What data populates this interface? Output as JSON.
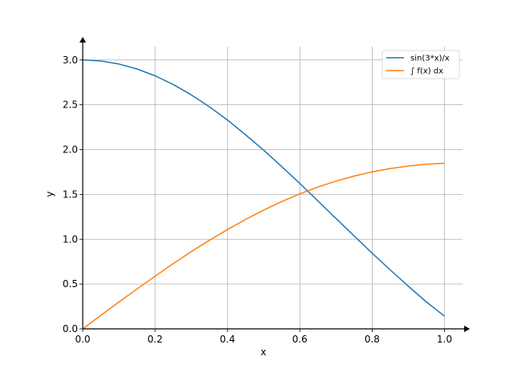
{
  "chart_data": {
    "type": "line",
    "title": "",
    "xlabel": "x",
    "ylabel": "y",
    "xlim": [
      0,
      1.05
    ],
    "ylim": [
      0,
      3.15
    ],
    "xticks": [
      0.0,
      0.2,
      0.4,
      0.6,
      0.8,
      1.0
    ],
    "xtick_labels": [
      "0.0",
      "0.2",
      "0.4",
      "0.6",
      "0.8",
      "1.0"
    ],
    "yticks": [
      0.0,
      0.5,
      1.0,
      1.5,
      2.0,
      2.5,
      3.0
    ],
    "ytick_labels": [
      "0.0",
      "0.5",
      "1.0",
      "1.5",
      "2.0",
      "2.5",
      "3.0"
    ],
    "grid": true,
    "legend_position": "top-right",
    "series": [
      {
        "name": "sin(3*x)/x",
        "color": "#1f77b4",
        "x": [
          0.0,
          0.05,
          0.1,
          0.15,
          0.2,
          0.25,
          0.3,
          0.35,
          0.4,
          0.45,
          0.5,
          0.55,
          0.6,
          0.65,
          0.7,
          0.75,
          0.8,
          0.85,
          0.9,
          0.95,
          1.0
        ],
        "y": [
          3.0,
          2.989,
          2.955,
          2.899,
          2.823,
          2.727,
          2.611,
          2.478,
          2.33,
          2.166,
          1.995,
          1.81,
          1.622,
          1.427,
          1.232,
          1.037,
          0.844,
          0.658,
          0.476,
          0.3,
          0.141
        ]
      },
      {
        "name": "∫ f(x) dx",
        "color": "#ff7f0e",
        "x": [
          0.0,
          0.05,
          0.1,
          0.15,
          0.2,
          0.25,
          0.3,
          0.35,
          0.4,
          0.45,
          0.5,
          0.55,
          0.6,
          0.65,
          0.7,
          0.75,
          0.8,
          0.85,
          0.9,
          0.95,
          1.0
        ],
        "y": [
          0.0,
          0.15,
          0.299,
          0.445,
          0.588,
          0.727,
          0.861,
          0.988,
          1.108,
          1.221,
          1.325,
          1.42,
          1.506,
          1.582,
          1.648,
          1.705,
          1.752,
          1.789,
          1.817,
          1.836,
          1.848
        ]
      }
    ]
  }
}
